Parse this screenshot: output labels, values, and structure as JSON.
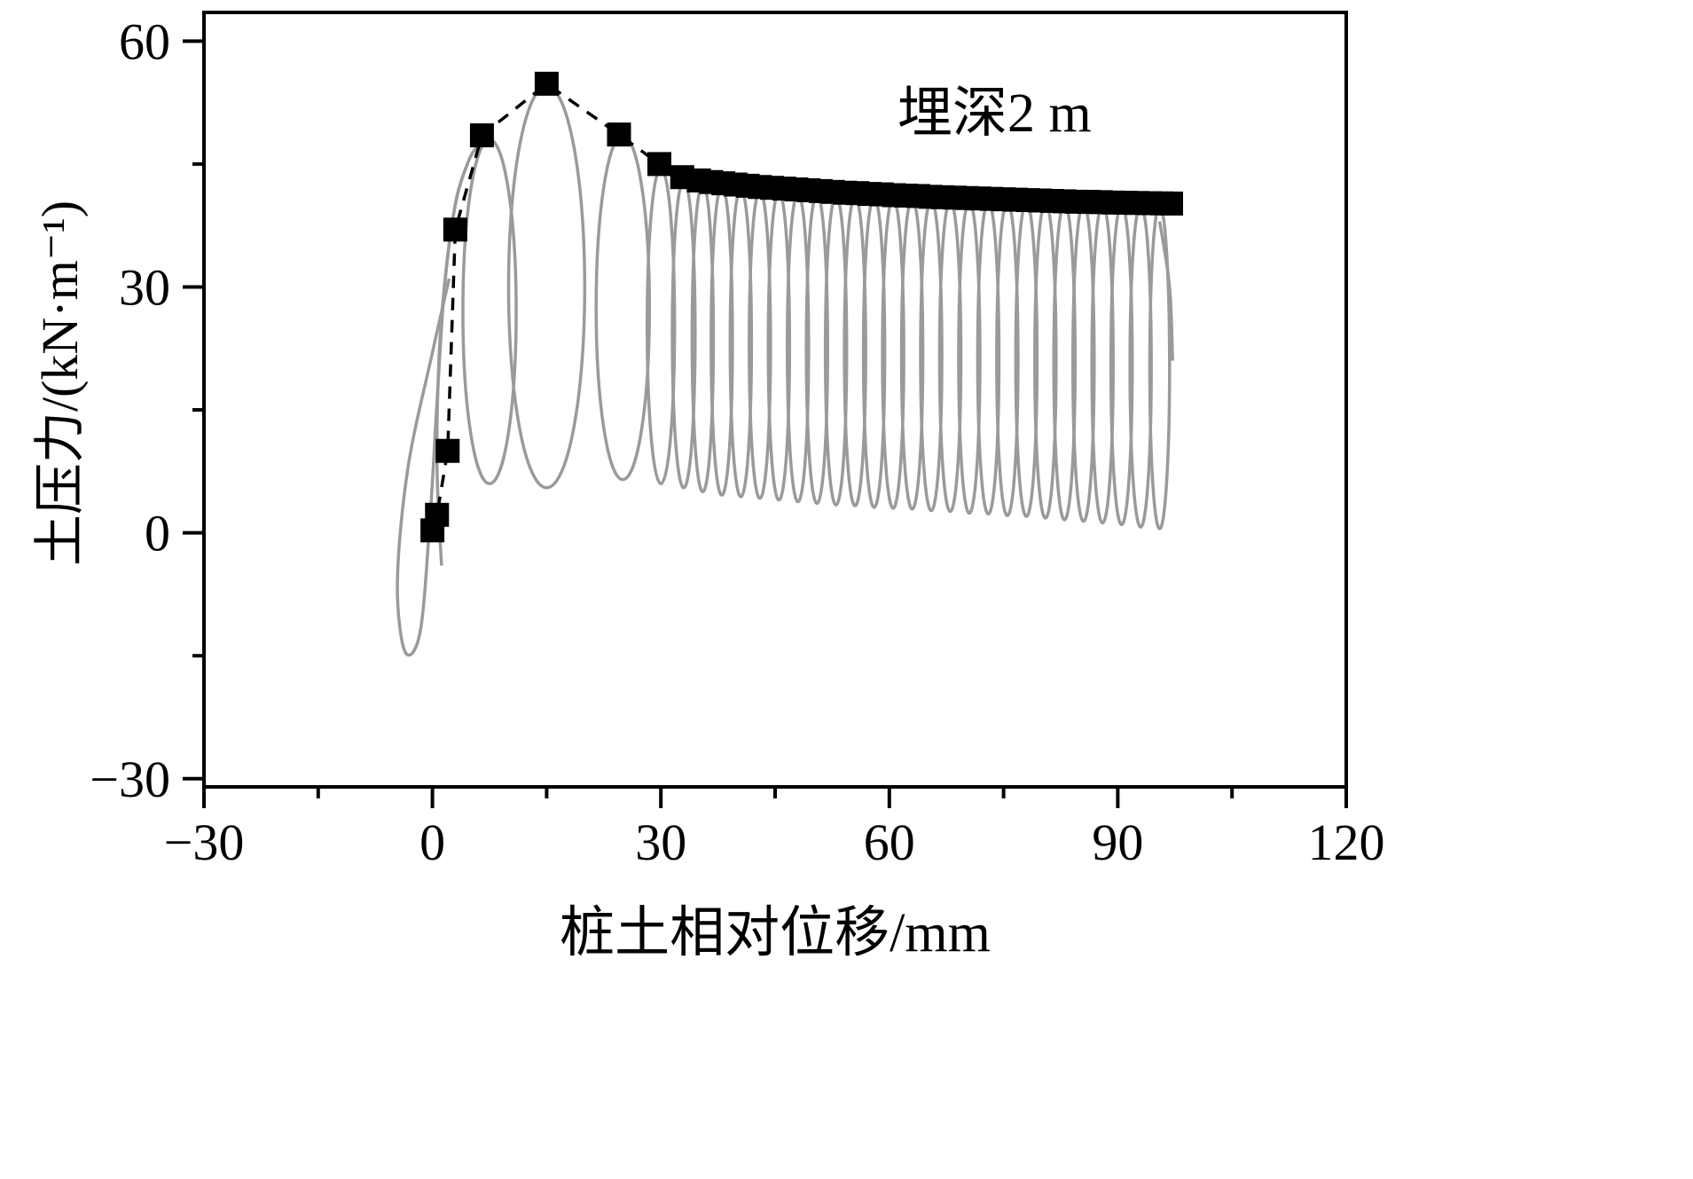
{
  "figure": {
    "background": "#ffffff"
  },
  "chart_data": {
    "type": "line",
    "title": "",
    "annotation": "埋深2 m",
    "xlabel": "桩土相对位移/mm",
    "ylabel": "土压力/(kN·m⁻¹)",
    "xlim": [
      -30,
      120
    ],
    "ylim": [
      -30,
      60
    ],
    "grid": false,
    "legend": null,
    "x_major_ticks": [
      {
        "v": -30,
        "label": "−30"
      },
      {
        "v": 0,
        "label": "0"
      },
      {
        "v": 30,
        "label": "30"
      },
      {
        "v": 60,
        "label": "60"
      },
      {
        "v": 90,
        "label": "90"
      },
      {
        "v": 120,
        "label": "120"
      }
    ],
    "y_major_ticks": [
      {
        "v": -30,
        "label": "−30"
      },
      {
        "v": 0,
        "label": "0"
      },
      {
        "v": 30,
        "label": "30"
      },
      {
        "v": 60,
        "label": "60"
      }
    ],
    "x_minor_ticks": [
      -15,
      15,
      45,
      75,
      105
    ],
    "y_minor_ticks": [
      -15,
      15,
      45
    ],
    "colors": {
      "envelope": "#000000",
      "cycles": "#9a9a9a",
      "frame": "#000000"
    },
    "series": [
      {
        "name": "peak-envelope",
        "type": "scatter-line",
        "marker": "square",
        "marker_size_px": 27,
        "line_style": "dashed",
        "color": "#000000",
        "points": [
          [
            0,
            0.3
          ],
          [
            0.6,
            2.2
          ],
          [
            2,
            10
          ],
          [
            3,
            37
          ],
          [
            6.5,
            48.5
          ],
          [
            15,
            54.8
          ],
          [
            24.5,
            48.6
          ],
          [
            29.8,
            45.0
          ],
          [
            32.8,
            43.4
          ],
          [
            35,
            43.0
          ],
          [
            36.6,
            42.8
          ],
          [
            38.2,
            42.65
          ],
          [
            39.8,
            42.5
          ],
          [
            41.4,
            42.35
          ],
          [
            43,
            42.2
          ],
          [
            44.6,
            42.1
          ],
          [
            46.2,
            42.0
          ],
          [
            47.8,
            41.9
          ],
          [
            49.4,
            41.8
          ],
          [
            51,
            41.7
          ],
          [
            52.6,
            41.6
          ],
          [
            54.2,
            41.5
          ],
          [
            55.8,
            41.45
          ],
          [
            57.4,
            41.35
          ],
          [
            59,
            41.3
          ],
          [
            60.6,
            41.2
          ],
          [
            62.2,
            41.15
          ],
          [
            63.8,
            41.1
          ],
          [
            65.4,
            41.0
          ],
          [
            67,
            40.95
          ],
          [
            68.6,
            40.9
          ],
          [
            70.2,
            40.85
          ],
          [
            71.8,
            40.8
          ],
          [
            73.4,
            40.75
          ],
          [
            75,
            40.7
          ],
          [
            76.6,
            40.65
          ],
          [
            78.2,
            40.6
          ],
          [
            79.8,
            40.55
          ],
          [
            81.4,
            40.5
          ],
          [
            83,
            40.45
          ],
          [
            84.6,
            40.4
          ],
          [
            86.2,
            40.38
          ],
          [
            87.8,
            40.35
          ],
          [
            89.4,
            40.3
          ],
          [
            91,
            40.28
          ],
          [
            92.6,
            40.25
          ],
          [
            94.2,
            40.22
          ],
          [
            95.8,
            40.2
          ],
          [
            97,
            40.18
          ]
        ]
      },
      {
        "name": "cyclic-loops",
        "type": "hysteresis",
        "color": "#9a9a9a",
        "lead_in": [
          [
            2.2,
            31
          ],
          [
            0,
            22
          ],
          [
            -3.2,
            8
          ],
          [
            -4.6,
            -6
          ],
          [
            -3.6,
            -14.5
          ],
          [
            -1.6,
            -12
          ],
          [
            -0.3,
            2
          ],
          [
            0.6,
            16
          ],
          [
            1.6,
            30
          ],
          [
            3,
            40
          ],
          [
            4.8,
            45.5
          ],
          [
            6.2,
            47.5
          ]
        ],
        "lead_in_2": [
          [
            1.2,
            -4
          ],
          [
            0.6,
            8
          ],
          [
            0.9,
            22
          ],
          [
            1.9,
            33
          ],
          [
            3.2,
            41
          ],
          [
            4.6,
            45
          ]
        ],
        "loops": [
          [
            7.5,
            48.0,
            6.0,
            3.5
          ],
          [
            15.0,
            54.5,
            5.5,
            5.0
          ],
          [
            25.0,
            48.5,
            6.5,
            3.5
          ],
          [
            30.0,
            44.5,
            6.0,
            1.8
          ],
          [
            33.0,
            43.0,
            5.5,
            1.5
          ],
          [
            35.5,
            42.6,
            5.0,
            1.4
          ],
          [
            38.0,
            42.3,
            4.6,
            1.4
          ],
          [
            40.5,
            42.0,
            4.4,
            1.4
          ],
          [
            43.0,
            41.8,
            4.2,
            1.4
          ],
          [
            45.5,
            41.6,
            4.0,
            1.4
          ],
          [
            48.0,
            41.4,
            3.8,
            1.4
          ],
          [
            50.5,
            41.3,
            3.6,
            1.4
          ],
          [
            53.0,
            41.1,
            3.4,
            1.4
          ],
          [
            55.5,
            41.0,
            3.3,
            1.4
          ],
          [
            58.0,
            40.9,
            3.1,
            1.4
          ],
          [
            60.5,
            40.8,
            3.0,
            1.4
          ],
          [
            63.0,
            40.7,
            2.9,
            1.4
          ],
          [
            65.5,
            40.6,
            2.7,
            1.4
          ],
          [
            68.0,
            40.5,
            2.6,
            1.4
          ],
          [
            70.5,
            40.45,
            2.4,
            1.4
          ],
          [
            73.0,
            40.4,
            2.3,
            1.4
          ],
          [
            75.5,
            40.35,
            2.1,
            1.4
          ],
          [
            78.0,
            40.3,
            2.0,
            1.4
          ],
          [
            80.5,
            40.25,
            1.8,
            1.4
          ],
          [
            83.0,
            40.2,
            1.6,
            1.4
          ],
          [
            85.5,
            40.15,
            1.4,
            1.4
          ],
          [
            88.0,
            40.1,
            1.2,
            1.4
          ],
          [
            90.5,
            40.05,
            1.0,
            1.4
          ],
          [
            93.0,
            40.0,
            0.7,
            1.4
          ],
          [
            95.5,
            39.95,
            0.5,
            1.3
          ]
        ],
        "tail": [
          [
            95.5,
            38.0
          ],
          [
            96.8,
            30.0
          ],
          [
            97.2,
            21.0
          ]
        ]
      }
    ]
  }
}
